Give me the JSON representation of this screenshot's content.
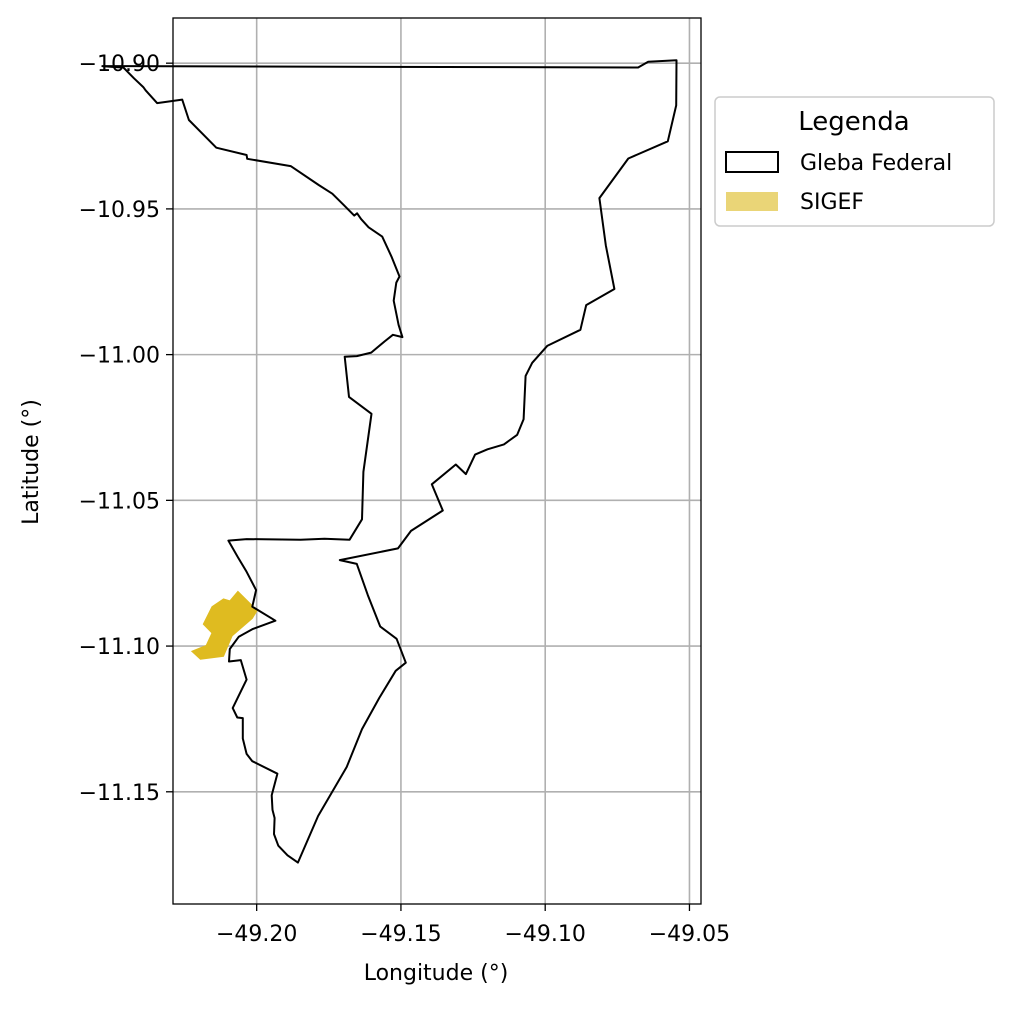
{
  "chart_data": {
    "type": "map",
    "xlabel": "Longitude (°)",
    "ylabel": "Latitude (°)",
    "xlim": [
      -49.229,
      -49.046
    ],
    "ylim": [
      -11.1885,
      -10.8845
    ],
    "grid": true,
    "x_ticks": [
      {
        "value": -49.2,
        "label": "−49.20"
      },
      {
        "value": -49.15,
        "label": "−49.15"
      },
      {
        "value": -49.1,
        "label": "−49.10"
      },
      {
        "value": -49.05,
        "label": "−49.05"
      }
    ],
    "y_ticks": [
      {
        "value": -10.9,
        "label": "−10.90"
      },
      {
        "value": -10.95,
        "label": "−10.95"
      },
      {
        "value": -11.0,
        "label": "−11.00"
      },
      {
        "value": -11.05,
        "label": "−11.05"
      },
      {
        "value": -11.1,
        "label": "−11.10"
      },
      {
        "value": -11.15,
        "label": "−11.15"
      }
    ],
    "legend": {
      "title": "Legenda",
      "position": "outside-right-top",
      "entries": [
        {
          "label": "Gleba Federal",
          "style": "outline",
          "color": "#000000"
        },
        {
          "label": "SIGEF",
          "style": "fill",
          "color": "#ead577"
        }
      ]
    },
    "gleba_federal": {
      "edge_color": "#000000",
      "fill": "none",
      "coords": [
        [
          -49.0678,
          -10.9015
        ],
        [
          -49.0643,
          -10.8995
        ],
        [
          -49.0545,
          -10.899
        ],
        [
          -49.0546,
          -10.9145
        ],
        [
          -49.0575,
          -10.9268
        ],
        [
          -49.0712,
          -10.9327
        ],
        [
          -49.0812,
          -10.9463
        ],
        [
          -49.079,
          -10.9625
        ],
        [
          -49.076,
          -10.9775
        ],
        [
          -49.0858,
          -10.983
        ],
        [
          -49.0878,
          -10.9915
        ],
        [
          -49.0993,
          -10.997
        ],
        [
          -49.1045,
          -11.0028
        ],
        [
          -49.1068,
          -11.0073
        ],
        [
          -49.1075,
          -11.0222
        ],
        [
          -49.1097,
          -11.0275
        ],
        [
          -49.1143,
          -11.0308
        ],
        [
          -49.12,
          -11.0325
        ],
        [
          -49.1243,
          -11.0343
        ],
        [
          -49.1275,
          -11.041
        ],
        [
          -49.131,
          -11.0377
        ],
        [
          -49.1393,
          -11.0445
        ],
        [
          -49.1355,
          -11.0535
        ],
        [
          -49.1465,
          -11.0605
        ],
        [
          -49.151,
          -11.0665
        ],
        [
          -49.1712,
          -11.0705
        ],
        [
          -49.1653,
          -11.0718
        ],
        [
          -49.1615,
          -11.0825
        ],
        [
          -49.1572,
          -11.0933
        ],
        [
          -49.1515,
          -11.0975
        ],
        [
          -49.1483,
          -11.1057
        ],
        [
          -49.1518,
          -11.1085
        ],
        [
          -49.1575,
          -11.1178
        ],
        [
          -49.1635,
          -11.1285
        ],
        [
          -49.1688,
          -11.1415
        ],
        [
          -49.1787,
          -11.1583
        ],
        [
          -49.1857,
          -11.1743
        ],
        [
          -49.1893,
          -11.1718
        ],
        [
          -49.1925,
          -11.1685
        ],
        [
          -49.194,
          -11.1645
        ],
        [
          -49.1938,
          -11.159
        ],
        [
          -49.1945,
          -11.1562
        ],
        [
          -49.1948,
          -11.1512
        ],
        [
          -49.1928,
          -11.1438
        ],
        [
          -49.2015,
          -11.1395
        ],
        [
          -49.2035,
          -11.137
        ],
        [
          -49.2048,
          -11.1317
        ],
        [
          -49.2048,
          -11.1247
        ],
        [
          -49.2067,
          -11.1245
        ],
        [
          -49.2083,
          -11.1213
        ],
        [
          -49.2035,
          -11.1115
        ],
        [
          -49.2055,
          -11.1048
        ],
        [
          -49.2096,
          -11.1053
        ],
        [
          -49.2093,
          -11.101
        ],
        [
          -49.2062,
          -11.0968
        ],
        [
          -49.2015,
          -11.0942
        ],
        [
          -49.1935,
          -11.0913
        ],
        [
          -49.2015,
          -11.0865
        ],
        [
          -49.2002,
          -11.0808
        ],
        [
          -49.2035,
          -11.0745
        ],
        [
          -49.2065,
          -11.0695
        ],
        [
          -49.2098,
          -11.0638
        ],
        [
          -49.2035,
          -11.0633
        ],
        [
          -49.1848,
          -11.0635
        ],
        [
          -49.1765,
          -11.0632
        ],
        [
          -49.1678,
          -11.0635
        ],
        [
          -49.1635,
          -11.0565
        ],
        [
          -49.163,
          -11.0402
        ],
        [
          -49.1602,
          -11.0203
        ],
        [
          -49.168,
          -11.0145
        ],
        [
          -49.1695,
          -11.0007
        ],
        [
          -49.1653,
          -11.0005
        ],
        [
          -49.1603,
          -10.9993
        ],
        [
          -49.1557,
          -10.9955
        ],
        [
          -49.1528,
          -10.9932
        ],
        [
          -49.1495,
          -10.994
        ],
        [
          -49.1495,
          -10.994
        ],
        [
          -49.1508,
          -10.9898
        ],
        [
          -49.1525,
          -10.9815
        ],
        [
          -49.1516,
          -10.9753
        ],
        [
          -49.1505,
          -10.9732
        ],
        [
          -49.1533,
          -10.9663
        ],
        [
          -49.1565,
          -10.9595
        ],
        [
          -49.1612,
          -10.9563
        ],
        [
          -49.1638,
          -10.9535
        ],
        [
          -49.1652,
          -10.9515
        ],
        [
          -49.1662,
          -10.9523
        ],
        [
          -49.1698,
          -10.9487
        ],
        [
          -49.1738,
          -10.9448
        ],
        [
          -49.1785,
          -10.9418
        ],
        [
          -49.1882,
          -10.9353
        ],
        [
          -49.2033,
          -10.9328
        ],
        [
          -49.2035,
          -10.9315
        ],
        [
          -49.214,
          -10.929
        ],
        [
          -49.2235,
          -10.9195
        ],
        [
          -49.2258,
          -10.9125
        ],
        [
          -49.2345,
          -10.9137
        ],
        [
          -49.2385,
          -10.9093
        ],
        [
          -49.2393,
          -10.9082
        ],
        [
          -49.2425,
          -10.9052
        ],
        [
          -49.2462,
          -10.9015
        ],
        [
          -49.2495,
          -10.9013
        ],
        [
          -49.2535,
          -10.901
        ]
      ]
    },
    "sigef": {
      "color": "#ead577",
      "fill": "#dfbb20",
      "coords": [
        [
          -49.2195,
          -11.1045
        ],
        [
          -49.2115,
          -11.1035
        ],
        [
          -49.2085,
          -11.0965
        ],
        [
          -49.2015,
          -11.0905
        ],
        [
          -49.1998,
          -11.0878
        ],
        [
          -49.2065,
          -11.0812
        ],
        [
          -49.2093,
          -11.0845
        ],
        [
          -49.2115,
          -11.0838
        ],
        [
          -49.2155,
          -11.0865
        ],
        [
          -49.2185,
          -11.0925
        ],
        [
          -49.2155,
          -11.0955
        ],
        [
          -49.2175,
          -11.0998
        ],
        [
          -49.2225,
          -11.1018
        ]
      ]
    }
  }
}
